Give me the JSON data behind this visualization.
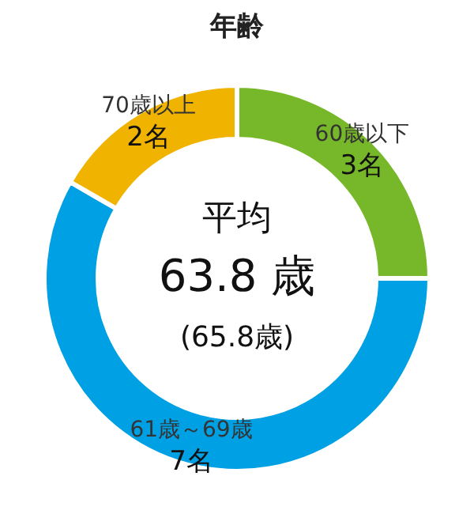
{
  "chart_data": {
    "type": "donut",
    "title": "年齢",
    "categories": [
      "60歳以下",
      "61歳～69歳",
      "70歳以上"
    ],
    "values": [
      3,
      7,
      2
    ],
    "colors": [
      "#77b82a",
      "#00a0e4",
      "#f0b400"
    ],
    "value_labels": [
      "3名",
      "7名",
      "2名"
    ],
    "annotations": [
      "平均",
      "63.8 歳",
      "(65.8歳)"
    ],
    "legend": false
  }
}
